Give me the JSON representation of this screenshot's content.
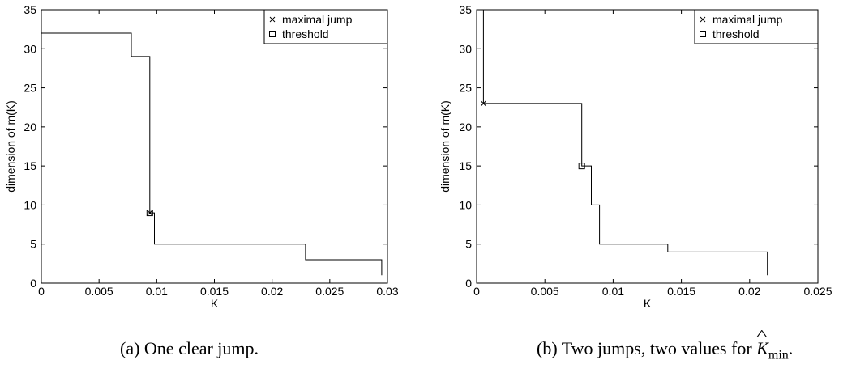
{
  "chart_data": [
    {
      "type": "line",
      "xlabel": "K",
      "ylabel": "dimension of m(K)",
      "xlim": [
        0,
        0.03
      ],
      "ylim": [
        0,
        35
      ],
      "xticks": [
        "0",
        "0.005",
        "0.01",
        "0.015",
        "0.02",
        "0.025",
        "0.03"
      ],
      "xtick_values": [
        0,
        0.005,
        0.01,
        0.015,
        0.02,
        0.025,
        0.03
      ],
      "yticks": [
        "0",
        "5",
        "10",
        "15",
        "20",
        "25",
        "30",
        "35"
      ],
      "ytick_values": [
        0,
        5,
        10,
        15,
        20,
        25,
        30,
        35
      ],
      "legend": {
        "position": "top-right",
        "entries": [
          {
            "marker": "x",
            "label": "maximal jump"
          },
          {
            "marker": "square",
            "label": "threshold"
          }
        ]
      },
      "step_points": [
        [
          0,
          32
        ],
        [
          0.0078,
          32
        ],
        [
          0.0078,
          29
        ],
        [
          0.0094,
          29
        ],
        [
          0.0094,
          9
        ],
        [
          0.0098,
          9
        ],
        [
          0.0098,
          5
        ],
        [
          0.0229,
          5
        ],
        [
          0.0229,
          3
        ],
        [
          0.0295,
          3
        ],
        [
          0.0295,
          1
        ]
      ],
      "maximal_jump": [
        0.0094,
        9
      ],
      "threshold": [
        0.0094,
        9
      ],
      "caption": "(a) One clear jump."
    },
    {
      "type": "line",
      "xlabel": "K",
      "ylabel": "dimension of m(K)",
      "xlim": [
        0,
        0.025
      ],
      "ylim": [
        0,
        35
      ],
      "xticks": [
        "0",
        "0.005",
        "0.01",
        "0.015",
        "0.02",
        "0.025"
      ],
      "xtick_values": [
        0,
        0.005,
        0.01,
        0.015,
        0.02,
        0.025
      ],
      "yticks": [
        "0",
        "5",
        "10",
        "15",
        "20",
        "25",
        "30",
        "35"
      ],
      "ytick_values": [
        0,
        5,
        10,
        15,
        20,
        25,
        30,
        35
      ],
      "legend": {
        "position": "top-right",
        "entries": [
          {
            "marker": "x",
            "label": "maximal jump"
          },
          {
            "marker": "square",
            "label": "threshold"
          }
        ]
      },
      "step_points": [
        [
          0.0005,
          35
        ],
        [
          0.0005,
          23
        ],
        [
          0.0077,
          23
        ],
        [
          0.0077,
          15
        ],
        [
          0.0084,
          15
        ],
        [
          0.0084,
          10
        ],
        [
          0.009,
          10
        ],
        [
          0.009,
          5
        ],
        [
          0.014,
          5
        ],
        [
          0.014,
          4
        ],
        [
          0.0213,
          4
        ],
        [
          0.0213,
          1
        ]
      ],
      "maximal_jump": [
        0.0005,
        23
      ],
      "threshold": [
        0.0077,
        15
      ],
      "caption_parts": [
        "(b) Two jumps, two values for ",
        "K",
        "min",
        "."
      ]
    }
  ]
}
